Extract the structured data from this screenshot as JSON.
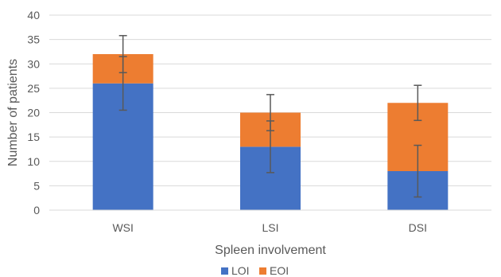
{
  "chart_data": {
    "type": "bar",
    "stacked": true,
    "title": "",
    "xlabel": "Spleen involvement",
    "ylabel": "Number of patients",
    "categories": [
      "WSI",
      "LSI",
      "DSI"
    ],
    "ylim": [
      0,
      40
    ],
    "yticks": [
      0,
      5,
      10,
      15,
      20,
      25,
      30,
      35,
      40
    ],
    "grid": true,
    "legend_position": "bottom",
    "series": [
      {
        "name": "LOI",
        "color": "#4472C4",
        "values": [
          26,
          13,
          8
        ],
        "error": [
          5.5,
          5.3,
          5.3
        ]
      },
      {
        "name": "EOI",
        "color": "#ED7D31",
        "values": [
          6,
          7,
          14
        ],
        "error": [
          3.8,
          3.7,
          3.6
        ]
      }
    ]
  }
}
